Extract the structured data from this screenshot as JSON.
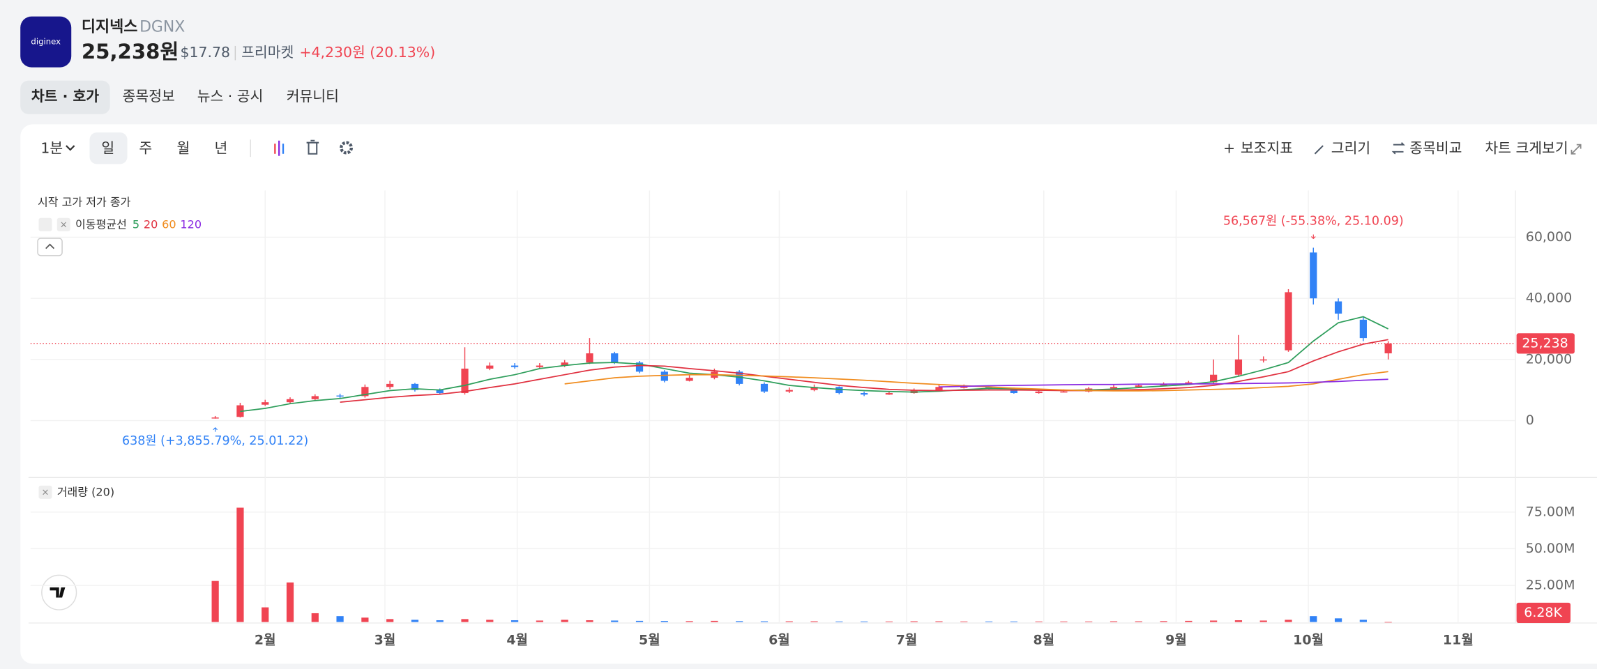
{
  "header": {
    "logo": "diginex",
    "name": "디지넥스",
    "ticker": "DGNX",
    "price": "25,238원",
    "usd": "$17.78",
    "session": "프리마켓",
    "change": "+4,230원 (20.13%)"
  },
  "tabs": [
    "차트 · 호가",
    "종목정보",
    "뉴스 · 공시",
    "커뮤니티"
  ],
  "toolbar": {
    "interval": "1분",
    "periods": [
      "일",
      "주",
      "월",
      "년"
    ],
    "actions": [
      "보조지표",
      "그리기",
      "종목비교",
      "차트 크게보기"
    ]
  },
  "chart_data": {
    "type": "candlestick",
    "ohlc_legend": "시작 고가 저가 종가",
    "ma_legend": "이동평균선",
    "volume_legend": "거래량 (20)",
    "up_color": "#f04452",
    "down_color": "#3182f6",
    "xlim": [
      -7.4,
      52.1
    ],
    "xticks": [
      {
        "value": 2.0,
        "label": "2월"
      },
      {
        "value": 6.8,
        "label": "3월"
      },
      {
        "value": 12.1,
        "label": "4월"
      },
      {
        "value": 17.4,
        "label": "5월"
      },
      {
        "value": 22.6,
        "label": "6월"
      },
      {
        "value": 27.7,
        "label": "7월"
      },
      {
        "value": 33.2,
        "label": "8월"
      },
      {
        "value": 38.5,
        "label": "9월"
      },
      {
        "value": 43.8,
        "label": "10월"
      },
      {
        "value": 49.8,
        "label": "11월"
      }
    ],
    "ylim": [
      -18300,
      75300
    ],
    "yticks": [
      0,
      {
        "value": 20000,
        "label": "20,000"
      },
      {
        "value": 40000,
        "label": "40,000"
      },
      {
        "value": 60000,
        "label": "60,000"
      }
    ],
    "y2lim": [
      0,
      97900000
    ],
    "y2ticks": [
      {
        "value": 25000000,
        "label": "25.00M"
      },
      {
        "value": 50000000,
        "label": "50.00M"
      },
      {
        "value": 75000000,
        "label": "75.00M"
      }
    ],
    "open": [
      700,
      1200,
      5200,
      6000,
      7000,
      8200,
      8000,
      11000,
      12000,
      10000,
      9000,
      17000,
      18000,
      17500,
      18000,
      19000,
      22000,
      19000,
      16000,
      13000,
      14000,
      16000,
      12000,
      9500,
      10000,
      11000,
      9000,
      8500,
      9000,
      10000,
      11000,
      11000,
      10500,
      9000,
      9500,
      9500,
      10500,
      11000,
      11500,
      12000,
      12500,
      15000,
      20000,
      23000,
      55000,
      39000,
      33000,
      22000
    ],
    "high": [
      1500,
      5800,
      6800,
      7600,
      8600,
      8800,
      11800,
      13000,
      12300,
      10500,
      24000,
      19000,
      18800,
      18800,
      19800,
      27000,
      22500,
      19500,
      16500,
      14800,
      17000,
      16500,
      12500,
      10800,
      11800,
      11200,
      9500,
      9500,
      10500,
      11800,
      11800,
      11400,
      10800,
      9800,
      10200,
      11000,
      11600,
      12000,
      12500,
      13000,
      20000,
      28000,
      21000,
      43000,
      56567,
      40000,
      34000,
      26000
    ],
    "low": [
      638,
      1000,
      4800,
      5600,
      6500,
      7400,
      7500,
      10300,
      9500,
      8500,
      8500,
      16500,
      17000,
      17000,
      17500,
      18500,
      18500,
      15500,
      12500,
      12800,
      13500,
      11500,
      9000,
      9000,
      9600,
      8600,
      8000,
      8400,
      8800,
      9700,
      10500,
      10200,
      8800,
      8800,
      9200,
      9200,
      10200,
      10700,
      11200,
      11700,
      12200,
      14500,
      19000,
      22500,
      38000,
      33000,
      26000,
      20000
    ],
    "close": [
      1000,
      5000,
      6000,
      7000,
      8000,
      8000,
      11000,
      12000,
      10000,
      9000,
      17000,
      18000,
      17500,
      18000,
      19000,
      22000,
      19000,
      16000,
      13000,
      14000,
      16000,
      12000,
      9500,
      10000,
      11000,
      9000,
      8500,
      9000,
      10000,
      11000,
      11000,
      10500,
      9000,
      9500,
      9500,
      10500,
      11000,
      11500,
      12000,
      12500,
      15000,
      20000,
      20000,
      42000,
      40000,
      35000,
      27000,
      25238
    ],
    "volume": [
      28000000,
      78000000,
      10000000,
      27000000,
      6000000,
      4000000,
      3000000,
      2000000,
      1500000,
      1200000,
      2000000,
      1500000,
      1200000,
      1000000,
      1500000,
      1200000,
      1000000,
      800000,
      700000,
      600000,
      800000,
      600000,
      500000,
      500000,
      500000,
      400000,
      400000,
      400000,
      500000,
      500000,
      400000,
      400000,
      400000,
      400000,
      400000,
      400000,
      500000,
      500000,
      600000,
      800000,
      1000000,
      1200000,
      1000000,
      1500000,
      4000000,
      2500000,
      1500000,
      6280
    ],
    "series": [
      {
        "name": "5",
        "color": "#2e9e5b",
        "values": [
          null,
          3000,
          4000,
          5500,
          6500,
          7200,
          8500,
          9800,
          10400,
          10000,
          11500,
          13500,
          15000,
          17000,
          18000,
          18800,
          19000,
          18500,
          17000,
          15500,
          15000,
          14200,
          13000,
          11500,
          10800,
          10200,
          9800,
          9500,
          9300,
          9600,
          10100,
          10500,
          10400,
          10200,
          9900,
          10000,
          10300,
          10800,
          11300,
          11800,
          12700,
          14500,
          16600,
          19000,
          26000,
          32000,
          34000,
          30000
        ]
      },
      {
        "name": "20",
        "color": "#e0303f",
        "values": [
          null,
          null,
          null,
          null,
          null,
          6000,
          6800,
          7600,
          8200,
          8600,
          9500,
          10800,
          12000,
          13500,
          15000,
          16500,
          17500,
          18000,
          17800,
          17000,
          16300,
          15500,
          14500,
          13500,
          12500,
          11500,
          10800,
          10200,
          9900,
          9800,
          9900,
          10000,
          10000,
          9900,
          9800,
          9800,
          9900,
          10100,
          10400,
          10800,
          11500,
          12800,
          14300,
          16000,
          19500,
          22500,
          25000,
          26500
        ]
      },
      {
        "name": "60",
        "color": "#f08c1e",
        "values": [
          null,
          null,
          null,
          null,
          null,
          null,
          null,
          null,
          null,
          null,
          null,
          null,
          null,
          null,
          12000,
          13000,
          14000,
          14500,
          14800,
          15000,
          15000,
          14800,
          14600,
          14300,
          14000,
          13600,
          13200,
          12700,
          12200,
          11800,
          11400,
          11000,
          10600,
          10300,
          10000,
          9800,
          9700,
          9700,
          9800,
          10000,
          10200,
          10400,
          10800,
          11200,
          12000,
          13500,
          15000,
          16000
        ]
      },
      {
        "name": "120",
        "color": "#8a2be2",
        "values": [
          null,
          null,
          null,
          null,
          null,
          null,
          null,
          null,
          null,
          null,
          null,
          null,
          null,
          null,
          null,
          null,
          null,
          null,
          null,
          null,
          null,
          null,
          null,
          null,
          null,
          null,
          null,
          null,
          null,
          11000,
          11200,
          11400,
          11500,
          11600,
          11700,
          11800,
          11800,
          11900,
          11900,
          12000,
          12000,
          12100,
          12200,
          12300,
          12500,
          12800,
          13200,
          13500
        ]
      }
    ],
    "last_price": {
      "value": 25238,
      "label": "25,238"
    },
    "last_volume": {
      "value": 6280,
      "label": "6.28K"
    },
    "annotations": [
      {
        "text": "56,567원 (-55.38%, 25.10.09)",
        "x": 44,
        "y": 56567
      },
      {
        "text": "638원 (+3,855.79%, 25.01.22)",
        "x": 0,
        "y": 638
      }
    ]
  }
}
